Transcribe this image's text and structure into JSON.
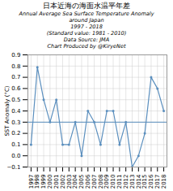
{
  "chart_data": {
    "type": "line",
    "title": "日本近海の海面水温平年差",
    "subtitle": [
      "Annual Average Sea Surface Temperature Anomaly",
      "around Japan",
      "1997 - 2018",
      "(Standard value: 1981 - 2010)",
      "Data Source: JMA",
      "Chart Produced by @KiryeNet"
    ],
    "x": [
      1997,
      1998,
      1999,
      2000,
      2001,
      2002,
      2003,
      2004,
      2005,
      2006,
      2007,
      2008,
      2009,
      2010,
      2011,
      2012,
      2013,
      2014,
      2015,
      2016,
      2017,
      2018
    ],
    "values": [
      0.1,
      0.79,
      0.5,
      0.3,
      0.5,
      0.1,
      0.1,
      0.3,
      0.0,
      0.4,
      0.3,
      0.1,
      0.4,
      0.4,
      0.1,
      0.3,
      -0.1,
      0.0,
      0.2,
      0.7,
      0.6,
      0.4
    ],
    "mean": 0.3,
    "color": "#5B8FBE",
    "marker": "circle",
    "ylabel": "SST Anomaly (°C)",
    "xlim": [
      1996.5,
      2018.5
    ],
    "xticks": [
      1997,
      1998,
      1999,
      2000,
      2001,
      2002,
      2003,
      2004,
      2005,
      2006,
      2007,
      2008,
      2009,
      2010,
      2011,
      2012,
      2013,
      2014,
      2015,
      2016,
      2017,
      2018
    ],
    "ylim": [
      -0.1,
      0.9
    ],
    "yticks": [
      {
        "value": -0.1,
        "label": "−0.1"
      },
      {
        "value": 0.0,
        "label": "0.0"
      },
      0.1,
      0.2,
      0.3,
      0.4,
      0.5,
      0.6,
      0.7,
      0.8,
      0.9
    ],
    "grid": true
  }
}
